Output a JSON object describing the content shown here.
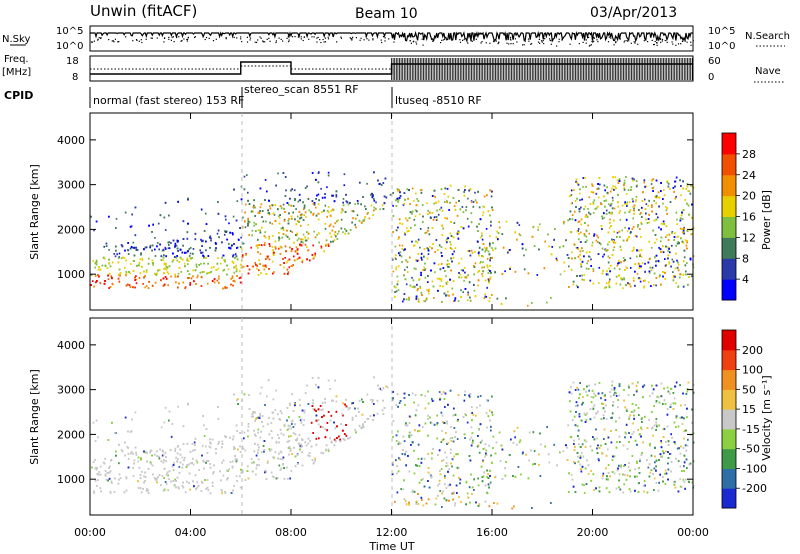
{
  "header": {
    "station": "Unwin (fitACF)",
    "beam": "Beam 10",
    "date": "03/Apr/2013"
  },
  "panels": {
    "nsky_label": "N.Sky",
    "nsearch_label": "N.Search",
    "freq_label_top": "Freq.",
    "freq_label_unit": "[MHz]",
    "cpid_label": "CPID",
    "nave_label": "Nave",
    "nsky_ticks": [
      "10^5",
      "10^0"
    ],
    "nsearch_ticks": [
      "10^5",
      "10^0"
    ],
    "freq_ticks": [
      "18",
      "8"
    ],
    "nave_ticks": [
      "60",
      "0"
    ]
  },
  "cpid_segments": [
    {
      "label": "normal (fast stereo) 153 RF",
      "start_h": 0,
      "end_h": 6
    },
    {
      "label": "stereo_scan 8551 RF",
      "start_h": 6,
      "end_h": 12
    },
    {
      "label": "ltuseq -8510 RF",
      "start_h": 12,
      "end_h": 24
    }
  ],
  "chart_data": [
    {
      "type": "heatmap",
      "quantity": "Power",
      "ylabel": "Slant Range [km]",
      "xlabel": "Time UT",
      "xlim": [
        0,
        24
      ],
      "ylim": [
        200,
        4600
      ],
      "yticks": [
        "1000",
        "2000",
        "3000",
        "4000"
      ],
      "colorbar": {
        "label": "Power [dB]",
        "ticks": [
          "28",
          "24",
          "20",
          "16",
          "12",
          "8",
          "4"
        ],
        "colors": [
          "#0000ff",
          "#2a3aa8",
          "#3f7a5a",
          "#7fbf3f",
          "#e8d000",
          "#f09000",
          "#f05000",
          "#ff0000"
        ]
      }
    },
    {
      "type": "heatmap",
      "quantity": "Velocity",
      "ylabel": "Slant Range [km]",
      "xlabel": "Time UT",
      "xlim": [
        0,
        24
      ],
      "ylim": [
        200,
        4600
      ],
      "yticks": [
        "1000",
        "2000",
        "3000",
        "4000"
      ],
      "colorbar": {
        "label": "Velocity [m s⁻¹]",
        "ticks": [
          "200",
          "100",
          "50",
          "15",
          "-15",
          "-50",
          "-100",
          "-200"
        ],
        "colors": [
          "#1a2ad0",
          "#2f6fa8",
          "#3f9a48",
          "#8ad040",
          "#c8c8c8",
          "#f0c040",
          "#f09020",
          "#f04010",
          "#e00000"
        ]
      }
    }
  ],
  "time_axis": {
    "label": "Time UT",
    "ticks": [
      "00:00",
      "04:00",
      "08:00",
      "12:00",
      "16:00",
      "20:00",
      "00:00"
    ]
  }
}
